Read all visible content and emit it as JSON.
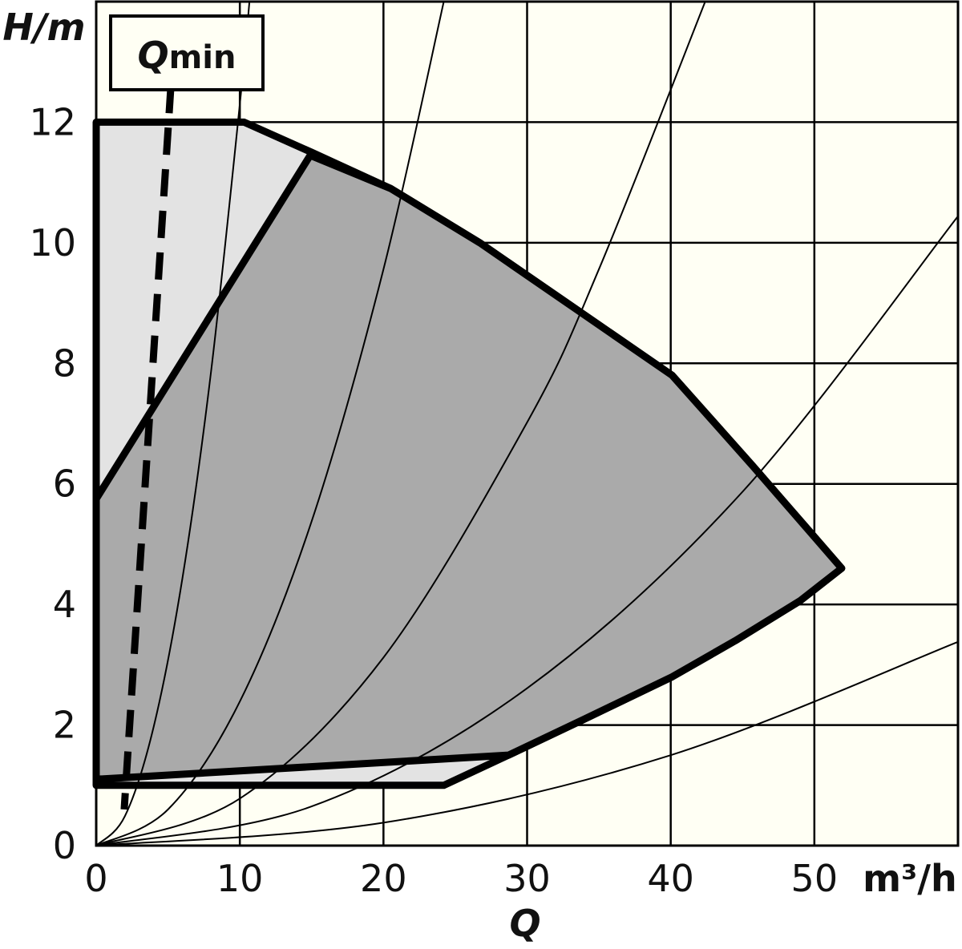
{
  "chart_data": {
    "type": "area",
    "y_label": "H/m",
    "x_unit": "m³/h",
    "x_label": "Q",
    "qmin_label": {
      "main": "Q",
      "sub": "min"
    },
    "xlim": [
      0,
      60
    ],
    "ylim": [
      0,
      14
    ],
    "xticks": [
      0,
      10,
      20,
      30,
      40,
      50
    ],
    "yticks": [
      0,
      2,
      4,
      6,
      8,
      10,
      12
    ],
    "grid": true,
    "regions": [
      {
        "color": "#e3e3e3",
        "x": [
          0,
          10.3,
          15,
          20.5,
          26.7,
          33.4,
          40.1,
          45.7,
          51.9,
          49,
          44.5,
          40.1,
          34,
          28.7,
          24.2,
          0
        ],
        "values": [
          12,
          12,
          11.5,
          10.9,
          10,
          8.9,
          7.8,
          6.3,
          4.6,
          4.06,
          3.4,
          2.8,
          2.1,
          1.5,
          1.0,
          1.0
        ]
      },
      {
        "color": "#aaaaaa",
        "x": [
          0,
          14.9,
          20.5,
          26.7,
          33.4,
          40.1,
          45.7,
          51.9,
          49,
          44.5,
          40.1,
          34,
          28.7,
          0
        ],
        "values": [
          5.75,
          11.45,
          10.9,
          10,
          8.9,
          7.8,
          6.3,
          4.6,
          4.06,
          3.4,
          2.8,
          2.1,
          1.5,
          1.1
        ]
      }
    ],
    "system_curves": [
      {
        "x": [
          0,
          2,
          4,
          6,
          8,
          10,
          10.67
        ],
        "values": [
          0,
          0.49,
          1.97,
          4.43,
          7.87,
          12.3,
          14.0
        ]
      },
      {
        "x": [
          0,
          5,
          10,
          15,
          20,
          24.2
        ],
        "values": [
          0,
          0.6,
          2.39,
          5.38,
          9.56,
          14.0
        ]
      },
      {
        "x": [
          0,
          10,
          20,
          30,
          35,
          42.4
        ],
        "values": [
          0,
          0.78,
          3.12,
          7.02,
          9.56,
          14.0
        ]
      },
      {
        "x": [
          0,
          15,
          30,
          45,
          60
        ],
        "values": [
          0,
          0.65,
          2.61,
          5.87,
          10.44
        ]
      },
      {
        "x": [
          0,
          20,
          40,
          60
        ],
        "values": [
          0,
          0.38,
          1.5,
          3.38
        ]
      }
    ],
    "qmin_line": {
      "x": [
        5.2,
        1.95
      ],
      "values": [
        12.6,
        0.6
      ]
    }
  }
}
